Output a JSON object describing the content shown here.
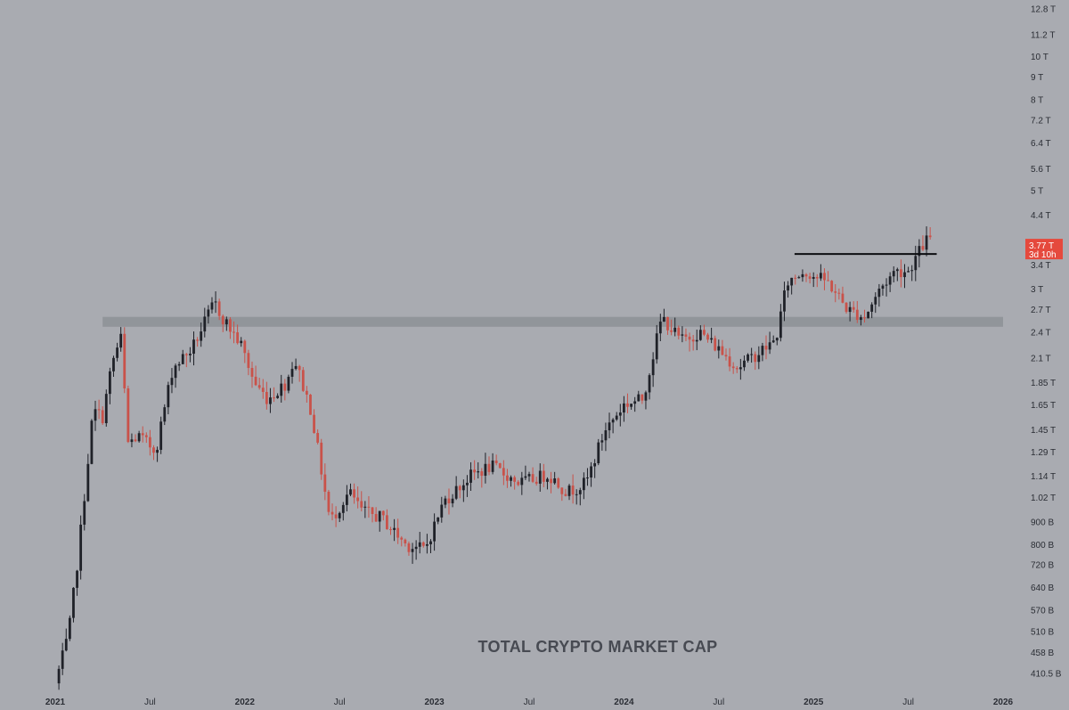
{
  "chart_data": {
    "type": "candlestick",
    "title": "TOTAL CRYPTO MARKET CAP",
    "y_scale": "log",
    "ylim": [
      0.38,
      13.5
    ],
    "xlim": [
      2021.0,
      2026.1
    ],
    "y_ticks": [
      {
        "label": "12.8 T",
        "value": 12.8
      },
      {
        "label": "11.2 T",
        "value": 11.2
      },
      {
        "label": "10 T",
        "value": 10
      },
      {
        "label": "9 T",
        "value": 9
      },
      {
        "label": "8 T",
        "value": 8
      },
      {
        "label": "7.2 T",
        "value": 7.2
      },
      {
        "label": "6.4 T",
        "value": 6.4
      },
      {
        "label": "5.6 T",
        "value": 5.6
      },
      {
        "label": "5 T",
        "value": 5
      },
      {
        "label": "4.4 T",
        "value": 4.4
      },
      {
        "label": "3.4 T",
        "value": 3.4
      },
      {
        "label": "3 T",
        "value": 3
      },
      {
        "label": "2.7 T",
        "value": 2.7
      },
      {
        "label": "2.4 T",
        "value": 2.4
      },
      {
        "label": "2.1 T",
        "value": 2.1
      },
      {
        "label": "1.85 T",
        "value": 1.85
      },
      {
        "label": "1.65 T",
        "value": 1.65
      },
      {
        "label": "1.45 T",
        "value": 1.45
      },
      {
        "label": "1.29 T",
        "value": 1.29
      },
      {
        "label": "1.14 T",
        "value": 1.14
      },
      {
        "label": "1.02 T",
        "value": 1.02
      },
      {
        "label": "900 B",
        "value": 0.9
      },
      {
        "label": "800 B",
        "value": 0.8
      },
      {
        "label": "720 B",
        "value": 0.72
      },
      {
        "label": "640 B",
        "value": 0.64
      },
      {
        "label": "570 B",
        "value": 0.57
      },
      {
        "label": "510 B",
        "value": 0.51
      },
      {
        "label": "458 B",
        "value": 0.458
      },
      {
        "label": "410.5 B",
        "value": 0.4105
      }
    ],
    "x_ticks": [
      {
        "label": "2021",
        "t": 2021.0,
        "year": true
      },
      {
        "label": "Jul",
        "t": 2021.5,
        "year": false
      },
      {
        "label": "2022",
        "t": 2022.0,
        "year": true
      },
      {
        "label": "Jul",
        "t": 2022.5,
        "year": false
      },
      {
        "label": "2023",
        "t": 2023.0,
        "year": true
      },
      {
        "label": "Jul",
        "t": 2023.5,
        "year": false
      },
      {
        "label": "2024",
        "t": 2024.0,
        "year": true
      },
      {
        "label": "Jul",
        "t": 2024.5,
        "year": false
      },
      {
        "label": "2025",
        "t": 2025.0,
        "year": true
      },
      {
        "label": "Jul",
        "t": 2025.5,
        "year": false
      },
      {
        "label": "2026",
        "t": 2026.0,
        "year": true
      }
    ],
    "price_label": {
      "value": 3.77,
      "text": "3.77 T",
      "countdown": "3d 10h"
    },
    "support_zone": {
      "t_start": 2021.25,
      "t_end": 2026.0,
      "y_low": 2.47,
      "y_high": 2.6
    },
    "resistance_line": {
      "t_start": 2024.9,
      "t_end": 2025.65,
      "y": 3.6
    },
    "anchors": [
      {
        "t": 2021.0,
        "v": 0.39
      },
      {
        "t": 2021.07,
        "v": 0.5
      },
      {
        "t": 2021.12,
        "v": 0.75
      },
      {
        "t": 2021.2,
        "v": 1.6
      },
      {
        "t": 2021.25,
        "v": 1.55
      },
      {
        "t": 2021.3,
        "v": 2.05
      },
      {
        "t": 2021.35,
        "v": 2.35
      },
      {
        "t": 2021.38,
        "v": 1.35
      },
      {
        "t": 2021.44,
        "v": 1.4
      },
      {
        "t": 2021.53,
        "v": 1.3
      },
      {
        "t": 2021.62,
        "v": 2.0
      },
      {
        "t": 2021.72,
        "v": 2.2
      },
      {
        "t": 2021.84,
        "v": 2.8
      },
      {
        "t": 2021.88,
        "v": 2.6
      },
      {
        "t": 2021.98,
        "v": 2.25
      },
      {
        "t": 2022.05,
        "v": 1.85
      },
      {
        "t": 2022.12,
        "v": 1.7
      },
      {
        "t": 2022.22,
        "v": 1.85
      },
      {
        "t": 2022.26,
        "v": 2.1
      },
      {
        "t": 2022.35,
        "v": 1.6
      },
      {
        "t": 2022.45,
        "v": 0.9
      },
      {
        "t": 2022.55,
        "v": 1.05
      },
      {
        "t": 2022.62,
        "v": 0.95
      },
      {
        "t": 2022.72,
        "v": 0.92
      },
      {
        "t": 2022.85,
        "v": 0.8
      },
      {
        "t": 2022.95,
        "v": 0.78
      },
      {
        "t": 2023.05,
        "v": 1.0
      },
      {
        "t": 2023.2,
        "v": 1.15
      },
      {
        "t": 2023.3,
        "v": 1.2
      },
      {
        "t": 2023.45,
        "v": 1.1
      },
      {
        "t": 2023.6,
        "v": 1.15
      },
      {
        "t": 2023.7,
        "v": 1.05
      },
      {
        "t": 2023.8,
        "v": 1.1
      },
      {
        "t": 2023.9,
        "v": 1.45
      },
      {
        "t": 2024.0,
        "v": 1.65
      },
      {
        "t": 2024.1,
        "v": 1.7
      },
      {
        "t": 2024.2,
        "v": 2.6
      },
      {
        "t": 2024.3,
        "v": 2.3
      },
      {
        "t": 2024.4,
        "v": 2.4
      },
      {
        "t": 2024.5,
        "v": 2.2
      },
      {
        "t": 2024.6,
        "v": 2.0
      },
      {
        "t": 2024.67,
        "v": 2.1
      },
      {
        "t": 2024.8,
        "v": 2.3
      },
      {
        "t": 2024.86,
        "v": 3.1
      },
      {
        "t": 2024.95,
        "v": 3.3
      },
      {
        "t": 2025.08,
        "v": 3.1
      },
      {
        "t": 2025.18,
        "v": 2.7
      },
      {
        "t": 2025.27,
        "v": 2.6
      },
      {
        "t": 2025.35,
        "v": 3.0
      },
      {
        "t": 2025.43,
        "v": 3.3
      },
      {
        "t": 2025.5,
        "v": 3.3
      },
      {
        "t": 2025.55,
        "v": 3.6
      },
      {
        "t": 2025.6,
        "v": 3.9
      },
      {
        "t": 2025.63,
        "v": 3.77
      }
    ]
  }
}
